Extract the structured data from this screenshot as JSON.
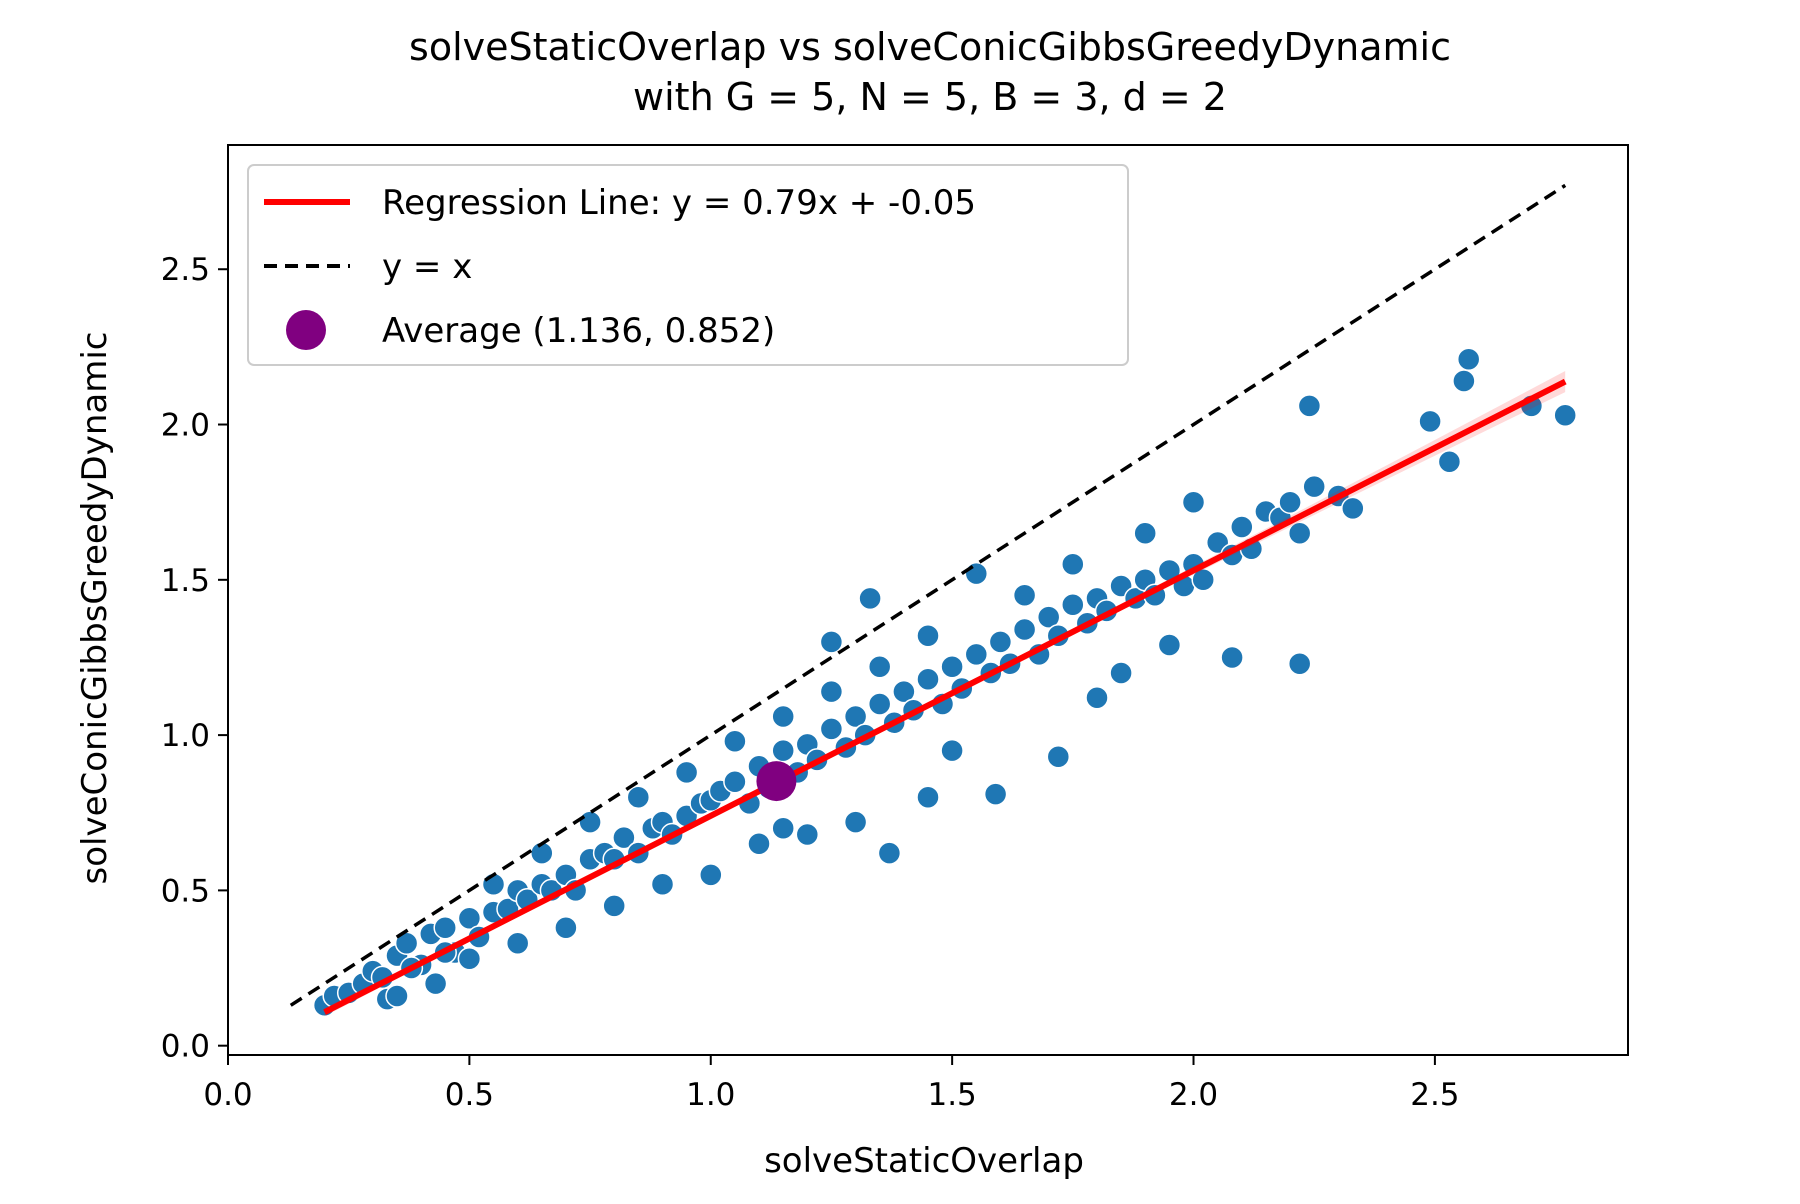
{
  "chart_data": {
    "type": "scatter",
    "title": "solveStaticOverlap vs solveConicGibbsGreedyDynamic",
    "subtitle": "with G = 5, N = 5, B = 3, d = 2",
    "xlabel": "solveStaticOverlap",
    "ylabel": "solveConicGibbsGreedyDynamic",
    "xlim": [
      0.0,
      2.9
    ],
    "ylim": [
      -0.03,
      2.9
    ],
    "x_ticks": [
      0.0,
      0.5,
      1.0,
      1.5,
      2.0,
      2.5
    ],
    "y_ticks": [
      0.0,
      0.5,
      1.0,
      1.5,
      2.0,
      2.5
    ],
    "x_tick_labels": [
      "0.0",
      "0.5",
      "1.0",
      "1.5",
      "2.0",
      "2.5"
    ],
    "y_tick_labels": [
      "0.0",
      "0.5",
      "1.0",
      "1.5",
      "2.0",
      "2.5"
    ],
    "grid": false,
    "legend_position": "upper-left",
    "colors": {
      "points": "#1f77b4",
      "regression": "#ff0000",
      "identity": "#000000",
      "average": "#800080"
    },
    "legend": [
      {
        "label": "Regression Line: y = 0.79x + -0.05",
        "marker": "solid-line",
        "color": "#ff0000"
      },
      {
        "label": "y = x",
        "marker": "dashed-line",
        "color": "#000000"
      },
      {
        "label": "Average (1.136, 0.852)",
        "marker": "circle",
        "color": "#800080"
      }
    ],
    "regression": {
      "slope": 0.79,
      "intercept": -0.05,
      "x_range": [
        0.2,
        2.77
      ]
    },
    "identity_line": {
      "x_range": [
        0.13,
        2.77
      ]
    },
    "average": {
      "x": 1.136,
      "y": 0.852
    },
    "series": [
      {
        "points_note": "approximate positions of scattered points",
        "x": [
          0.2,
          0.22,
          0.25,
          0.28,
          0.3,
          0.32,
          0.33,
          0.35,
          0.37,
          0.4,
          0.42,
          0.45,
          0.47,
          0.5,
          0.52,
          0.55,
          0.58,
          0.6,
          0.62,
          0.65,
          0.67,
          0.7,
          0.72,
          0.75,
          0.78,
          0.8,
          0.82,
          0.85,
          0.88,
          0.9,
          0.92,
          0.95,
          0.98,
          1.0,
          1.02,
          1.05,
          1.08,
          1.1,
          1.12,
          1.15,
          1.18,
          1.2,
          1.22,
          1.25,
          1.28,
          1.3,
          1.32,
          1.35,
          1.38,
          1.4,
          1.42,
          1.45,
          1.48,
          1.5,
          1.52,
          1.55,
          1.58,
          1.6,
          1.62,
          1.65,
          1.68,
          1.7,
          1.72,
          1.75,
          1.78,
          1.8,
          1.82,
          1.85,
          1.88,
          1.9,
          1.92,
          1.95,
          1.98,
          2.0,
          2.02,
          2.05,
          2.08,
          2.1,
          2.12,
          2.15,
          2.18,
          2.2,
          2.22,
          2.25,
          2.3,
          2.33,
          2.49,
          2.53,
          2.56,
          2.57,
          2.7,
          2.77,
          0.35,
          0.43,
          0.5,
          0.6,
          0.7,
          0.8,
          0.9,
          1.0,
          1.1,
          1.2,
          1.3,
          1.37,
          1.45,
          1.5,
          1.59,
          1.72,
          1.8,
          1.85,
          1.95,
          2.22,
          2.08,
          1.25,
          1.55,
          1.33,
          0.55,
          0.65,
          0.75,
          0.85,
          0.95,
          1.05,
          1.15,
          1.25,
          1.35,
          1.45,
          1.65,
          1.75,
          1.9,
          2.0,
          2.24,
          1.15,
          0.45,
          0.38
        ],
        "y": [
          0.13,
          0.16,
          0.17,
          0.2,
          0.24,
          0.22,
          0.15,
          0.29,
          0.33,
          0.26,
          0.36,
          0.38,
          0.3,
          0.41,
          0.35,
          0.43,
          0.44,
          0.5,
          0.47,
          0.52,
          0.5,
          0.55,
          0.5,
          0.6,
          0.62,
          0.6,
          0.67,
          0.62,
          0.7,
          0.72,
          0.68,
          0.74,
          0.78,
          0.79,
          0.82,
          0.85,
          0.78,
          0.9,
          0.83,
          0.95,
          0.88,
          0.97,
          0.92,
          1.02,
          0.96,
          1.06,
          1.0,
          1.1,
          1.04,
          1.14,
          1.08,
          1.18,
          1.1,
          1.22,
          1.15,
          1.26,
          1.2,
          1.3,
          1.23,
          1.34,
          1.26,
          1.38,
          1.32,
          1.42,
          1.36,
          1.44,
          1.4,
          1.48,
          1.44,
          1.5,
          1.45,
          1.53,
          1.48,
          1.55,
          1.5,
          1.62,
          1.58,
          1.67,
          1.6,
          1.72,
          1.7,
          1.75,
          1.65,
          1.8,
          1.77,
          1.73,
          2.01,
          1.88,
          2.14,
          2.21,
          2.06,
          2.03,
          0.16,
          0.2,
          0.28,
          0.33,
          0.38,
          0.45,
          0.52,
          0.55,
          0.65,
          0.68,
          0.72,
          0.62,
          0.8,
          0.95,
          0.81,
          0.93,
          1.12,
          1.2,
          1.29,
          1.23,
          1.25,
          1.3,
          1.52,
          1.44,
          0.52,
          0.62,
          0.72,
          0.8,
          0.88,
          0.98,
          1.06,
          1.14,
          1.22,
          1.32,
          1.45,
          1.55,
          1.65,
          1.75,
          2.06,
          0.7,
          0.3,
          0.25
        ]
      }
    ]
  }
}
